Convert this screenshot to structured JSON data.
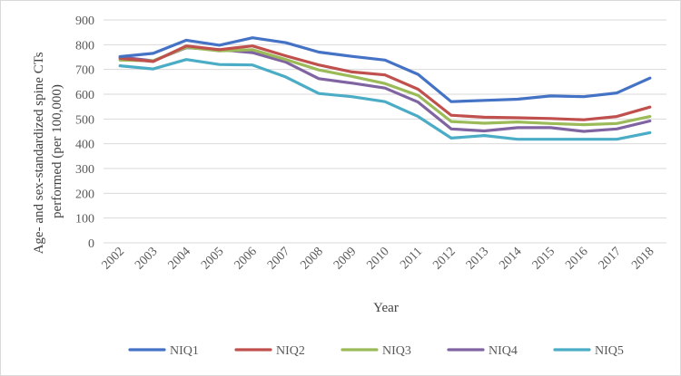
{
  "chart_data": {
    "type": "line",
    "title": "",
    "xlabel": "Year",
    "ylabel": "Age- and sex-standardized spine CTs performed (per 100,000)",
    "ylabel_lines": [
      "Age- and sex-standardized spine CTs",
      "performed (per 100,000)"
    ],
    "ylim": [
      0,
      900
    ],
    "yticks": [
      0,
      100,
      200,
      300,
      400,
      500,
      600,
      700,
      800,
      900
    ],
    "ytick_labels": [
      "0",
      "100",
      "200",
      "300",
      "400",
      "500",
      "600",
      "700",
      "800",
      "900"
    ],
    "grid": true,
    "legend_position": "bottom",
    "categories": [
      "2002",
      "2003",
      "2004",
      "2005",
      "2006",
      "2007",
      "2008",
      "2009",
      "2010",
      "2011",
      "2012",
      "2013",
      "2014",
      "2015",
      "2016",
      "2017",
      "2018"
    ],
    "series": [
      {
        "name": "NIQ1",
        "color": "#4472C4",
        "values": [
          752,
          765,
          818,
          798,
          828,
          808,
          770,
          753,
          738,
          680,
          570,
          575,
          580,
          593,
          590,
          605,
          665
        ]
      },
      {
        "name": "NIQ2",
        "color": "#C0504D",
        "values": [
          745,
          732,
          795,
          780,
          795,
          755,
          718,
          690,
          678,
          620,
          515,
          507,
          505,
          502,
          497,
          510,
          548
        ]
      },
      {
        "name": "NIQ3",
        "color": "#9BBB59",
        "values": [
          738,
          735,
          790,
          775,
          780,
          740,
          698,
          672,
          643,
          595,
          490,
          483,
          488,
          482,
          477,
          482,
          510
        ]
      },
      {
        "name": "NIQ4",
        "color": "#8064A2",
        "values": [
          750,
          735,
          788,
          780,
          768,
          730,
          663,
          645,
          625,
          568,
          460,
          452,
          465,
          465,
          450,
          460,
          492
        ]
      },
      {
        "name": "NIQ5",
        "color": "#4BACC6",
        "values": [
          715,
          702,
          740,
          720,
          718,
          670,
          603,
          590,
          570,
          510,
          423,
          433,
          418,
          418,
          418,
          418,
          445
        ]
      }
    ]
  }
}
